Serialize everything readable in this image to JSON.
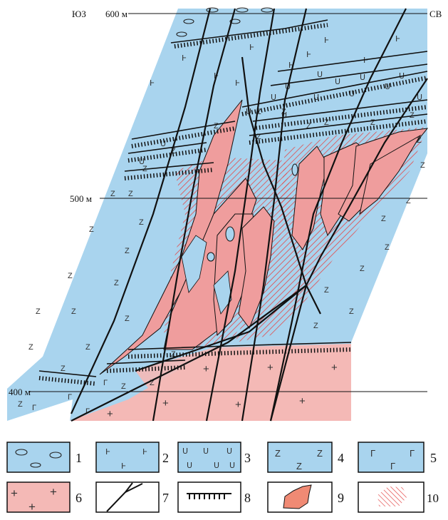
{
  "section": {
    "dir_left": "ЮЗ",
    "dir_right": "СВ",
    "elev_600": "600 м",
    "elev_500": "500 м",
    "elev_400": "400 м"
  },
  "colors": {
    "host_blue": "#a9d4ee",
    "granite_pink": "#f4b9b6",
    "ore_pink": "#ef9d9d",
    "hatch_red": "#e44a4a",
    "line": "#111111"
  },
  "legend": [
    {
      "num": "1",
      "pattern": "ellipses",
      "symbol": "ellipse"
    },
    {
      "num": "2",
      "pattern": "t-marks",
      "symbol": "Ͱ"
    },
    {
      "num": "3",
      "pattern": "arcs",
      "symbol": "ᑌ"
    },
    {
      "num": "4",
      "pattern": "z-marks",
      "symbol": "Z"
    },
    {
      "num": "5",
      "pattern": "gamma",
      "symbol": "Г"
    },
    {
      "num": "6",
      "pattern": "crosses",
      "symbol": "+"
    },
    {
      "num": "7",
      "pattern": "faults",
      "symbol": "fault-lines"
    },
    {
      "num": "8",
      "pattern": "contact",
      "symbol": "hachured-line"
    },
    {
      "num": "9",
      "pattern": "orebody",
      "symbol": "pink-body"
    },
    {
      "num": "10",
      "pattern": "alteration",
      "symbol": "red-hatch"
    }
  ]
}
